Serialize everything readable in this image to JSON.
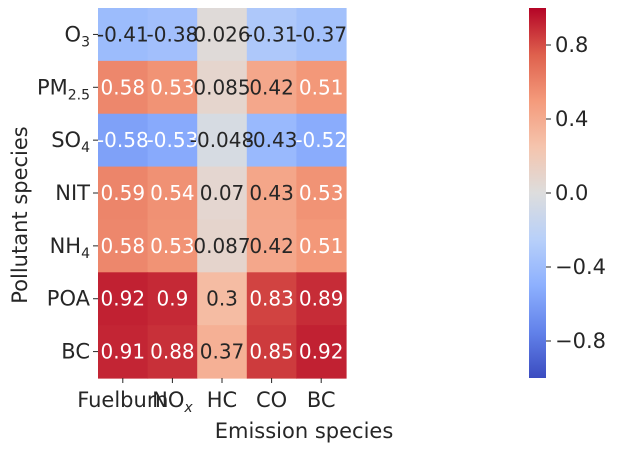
{
  "chart_data": {
    "type": "heatmap",
    "title": "",
    "xlabel": "Emission species",
    "ylabel": "Pollutant species",
    "x_categories": [
      {
        "base": "Fuelburn",
        "sub": "",
        "sub_style": ""
      },
      {
        "base": "NO",
        "sub": "x",
        "sub_style": "italic"
      },
      {
        "base": "HC",
        "sub": "",
        "sub_style": ""
      },
      {
        "base": "CO",
        "sub": "",
        "sub_style": ""
      },
      {
        "base": "BC",
        "sub": "",
        "sub_style": ""
      }
    ],
    "y_categories": [
      {
        "base": "O",
        "sub": "3"
      },
      {
        "base": "PM",
        "sub": "2.5"
      },
      {
        "base": "SO",
        "sub": "4"
      },
      {
        "base": "NIT",
        "sub": ""
      },
      {
        "base": "NH",
        "sub": "4"
      },
      {
        "base": "POA",
        "sub": ""
      },
      {
        "base": "BC",
        "sub": ""
      }
    ],
    "values": [
      [
        -0.41,
        -0.38,
        0.026,
        -0.31,
        -0.37
      ],
      [
        0.58,
        0.53,
        0.085,
        0.42,
        0.51
      ],
      [
        -0.58,
        -0.53,
        -0.048,
        -0.43,
        -0.52
      ],
      [
        0.59,
        0.54,
        0.07,
        0.43,
        0.53
      ],
      [
        0.58,
        0.53,
        0.087,
        0.42,
        0.51
      ],
      [
        0.92,
        0.9,
        0.3,
        0.83,
        0.89
      ],
      [
        0.91,
        0.88,
        0.37,
        0.85,
        0.92
      ]
    ],
    "cell_labels": [
      [
        "-0.41",
        "-0.38",
        "0.026",
        "-0.31",
        "-0.37"
      ],
      [
        "0.58",
        "0.53",
        "0.085",
        "0.42",
        "0.51"
      ],
      [
        "-0.58",
        "-0.53",
        "-0.048",
        "-0.43",
        "-0.52"
      ],
      [
        "0.59",
        "0.54",
        "0.07",
        "0.43",
        "0.53"
      ],
      [
        "0.58",
        "0.53",
        "0.087",
        "0.42",
        "0.51"
      ],
      [
        "0.92",
        "0.9",
        "0.3",
        "0.83",
        "0.89"
      ],
      [
        "0.91",
        "0.88",
        "0.37",
        "0.85",
        "0.92"
      ]
    ],
    "colormap": "coolwarm",
    "vmin": -1,
    "vmax": 1,
    "colorbar": {
      "ticks": [
        0.8,
        0.4,
        0.0,
        -0.4,
        -0.8
      ],
      "tick_labels": [
        "0.8",
        "0.4",
        "0.0",
        "−0.4",
        "−0.8"
      ]
    }
  }
}
